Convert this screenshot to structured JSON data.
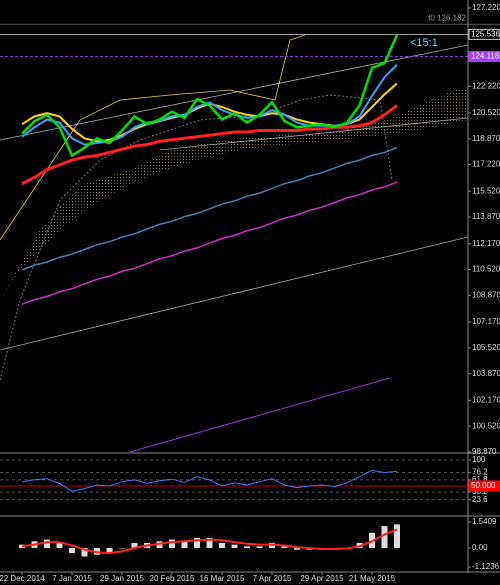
{
  "chart_data": [
    {
      "type": "line",
      "categories": [
        "22 Dec 2014",
        null,
        null,
        null,
        "7 Jan 2015",
        null,
        null,
        null,
        "29 Jan 2015",
        null,
        null,
        null,
        "20 Feb 2015",
        null,
        null,
        null,
        "16 Mar 2015",
        null,
        null,
        null,
        "7 Apr 2015",
        null,
        null,
        null,
        "29 Apr 2015",
        null,
        null,
        null,
        "21 May 2015",
        null,
        null,
        null,
        null,
        null,
        null,
        null
      ],
      "series": [
        {
          "color": "#cc33cc",
          "width": 1.5,
          "values": [
            108.3,
            108.6,
            108.8,
            109.1,
            109.3,
            109.6,
            109.9,
            110.1,
            110.4,
            110.6,
            110.9,
            111.2,
            111.4,
            111.7,
            111.9,
            112.2,
            112.5,
            112.7,
            113.0,
            113.2,
            113.5,
            113.8,
            114.0,
            114.3,
            114.5,
            114.8,
            115.1,
            115.3,
            115.6,
            115.8,
            116.1,
            null,
            null,
            null,
            null,
            null
          ]
        },
        {
          "color": "#4682b4",
          "width": 1.5,
          "values": [
            110.5,
            110.8,
            111.0,
            111.3,
            111.5,
            111.8,
            112.1,
            112.3,
            112.6,
            112.8,
            113.1,
            113.4,
            113.6,
            113.9,
            114.1,
            114.4,
            114.7,
            114.9,
            115.2,
            115.4,
            115.7,
            116.0,
            116.2,
            116.5,
            116.7,
            117.0,
            117.3,
            117.5,
            117.8,
            118.0,
            118.3,
            null,
            null,
            null,
            null,
            null
          ]
        },
        {
          "color": "#ff2020",
          "width": 3,
          "values": [
            116.0,
            116.4,
            116.9,
            117.2,
            117.5,
            117.7,
            117.8,
            118.0,
            118.2,
            118.4,
            118.5,
            118.7,
            118.8,
            118.9,
            119.0,
            119.1,
            119.2,
            119.3,
            119.3,
            119.4,
            119.4,
            119.4,
            119.4,
            119.5,
            119.5,
            119.6,
            119.6,
            119.7,
            119.9,
            120.4,
            121.0,
            null,
            null,
            null,
            null,
            null
          ]
        },
        {
          "color": "#ffd700",
          "width": 2,
          "values": [
            119.8,
            120.3,
            120.5,
            120.3,
            119.5,
            118.9,
            118.7,
            118.8,
            119.1,
            119.5,
            119.8,
            120.0,
            120.2,
            120.4,
            120.8,
            121.1,
            120.9,
            120.6,
            120.4,
            120.3,
            120.5,
            120.4,
            120.1,
            119.9,
            119.8,
            119.7,
            119.8,
            120.1,
            120.9,
            121.7,
            122.4,
            null,
            null,
            null,
            null,
            null
          ]
        },
        {
          "color": "#3aa0ff",
          "width": 2,
          "values": [
            119.0,
            119.6,
            120.1,
            119.9,
            118.9,
            118.5,
            118.6,
            118.7,
            119.0,
            119.6,
            119.9,
            120.0,
            120.3,
            120.4,
            120.9,
            121.2,
            120.7,
            120.4,
            120.2,
            120.3,
            120.7,
            120.4,
            119.9,
            119.7,
            119.7,
            119.7,
            119.8,
            120.3,
            121.6,
            122.8,
            123.6,
            null,
            null,
            null,
            null,
            null
          ]
        },
        {
          "color": "#00e000",
          "width": 2.5,
          "values": [
            119.2,
            120.0,
            120.4,
            119.6,
            117.8,
            118.3,
            118.9,
            118.6,
            119.4,
            120.3,
            119.8,
            120.1,
            120.6,
            120.2,
            121.4,
            121.0,
            120.1,
            120.5,
            119.9,
            120.4,
            121.2,
            120.0,
            119.6,
            119.7,
            119.8,
            119.6,
            119.9,
            121.0,
            123.4,
            123.7,
            125.5,
            null,
            null,
            null,
            null,
            null
          ]
        }
      ],
      "ylim": [
        98.87,
        127.73
      ],
      "yticks": [
        {
          "value": 127.22,
          "label": "127.220"
        },
        {
          "value": 122.22,
          "label": "122.220"
        },
        {
          "value": 120.52,
          "label": "120.520"
        },
        {
          "value": 118.87,
          "label": "118.870"
        },
        {
          "value": 117.22,
          "label": "117.220"
        },
        {
          "value": 115.52,
          "label": "115.520"
        },
        {
          "value": 113.87,
          "label": "113.870"
        },
        {
          "value": 112.17,
          "label": "112.170"
        },
        {
          "value": 110.52,
          "label": "110.520"
        },
        {
          "value": 108.87,
          "label": "108.870"
        },
        {
          "value": 107.17,
          "label": "107.170"
        },
        {
          "value": 105.52,
          "label": "105.520"
        },
        {
          "value": 103.87,
          "label": "103.870"
        },
        {
          "value": 102.17,
          "label": "102.170"
        },
        {
          "value": 100.52,
          "label": "100.520"
        },
        {
          "value": 98.87,
          "label": "98.870"
        }
      ],
      "hlines": [
        {
          "value": 126.182,
          "label": "t0 126.182",
          "color": "#777777",
          "boxed": false
        },
        {
          "value": 125.536,
          "label": "125.536",
          "color": "#cccccc",
          "boxed": true
        },
        {
          "value": 124.118,
          "label": "124.118",
          "color": "#a040ff",
          "boxed": true
        }
      ],
      "annotation": "<15:1",
      "grid": false
    },
    {
      "type": "line",
      "series": [
        {
          "color": "#3a7fff",
          "width": 1,
          "values": [
            58,
            62,
            64,
            55,
            40,
            45,
            52,
            50,
            58,
            62,
            55,
            60,
            63,
            57,
            68,
            62,
            50,
            56,
            52,
            58,
            64,
            52,
            47,
            50,
            52,
            49,
            56,
            68,
            80,
            76,
            78,
            null,
            null,
            null,
            null,
            null
          ]
        }
      ],
      "ylim": [
        0,
        100
      ],
      "yticks": [
        100,
        76.2,
        61.8,
        38.2,
        23.6
      ],
      "hlines": [
        {
          "value": 50,
          "label": "50.000",
          "color": "#ff0000",
          "boxed": true
        }
      ],
      "grid": true
    },
    {
      "type": "bar",
      "values": [
        0.2,
        0.4,
        0.5,
        0.3,
        -0.3,
        -0.5,
        -0.4,
        -0.3,
        0.0,
        0.3,
        0.3,
        0.4,
        0.5,
        0.4,
        0.6,
        0.6,
        0.3,
        0.2,
        0.1,
        0.1,
        0.3,
        0.1,
        -0.1,
        -0.1,
        -0.1,
        -0.1,
        0.0,
        0.3,
        0.9,
        1.3,
        1.4,
        null,
        null,
        null,
        null,
        null
      ],
      "color": "#dddddd",
      "series": [
        {
          "color": "#ff2020",
          "width": 2,
          "values": [
            0.1,
            0.2,
            0.35,
            0.35,
            0.15,
            -0.1,
            -0.25,
            -0.3,
            -0.2,
            0.0,
            0.15,
            0.25,
            0.35,
            0.4,
            0.45,
            0.5,
            0.45,
            0.35,
            0.25,
            0.2,
            0.2,
            0.15,
            0.05,
            0.0,
            -0.05,
            -0.05,
            -0.03,
            0.1,
            0.4,
            0.8,
            1.1,
            null,
            null,
            null,
            null,
            null
          ]
        }
      ],
      "ylim": [
        -1.1236,
        1.5409
      ],
      "yticks": [
        1.5409,
        {
          "value": 0,
          "label": "0.00"
        },
        -1.1236
      ],
      "grid": false
    }
  ]
}
